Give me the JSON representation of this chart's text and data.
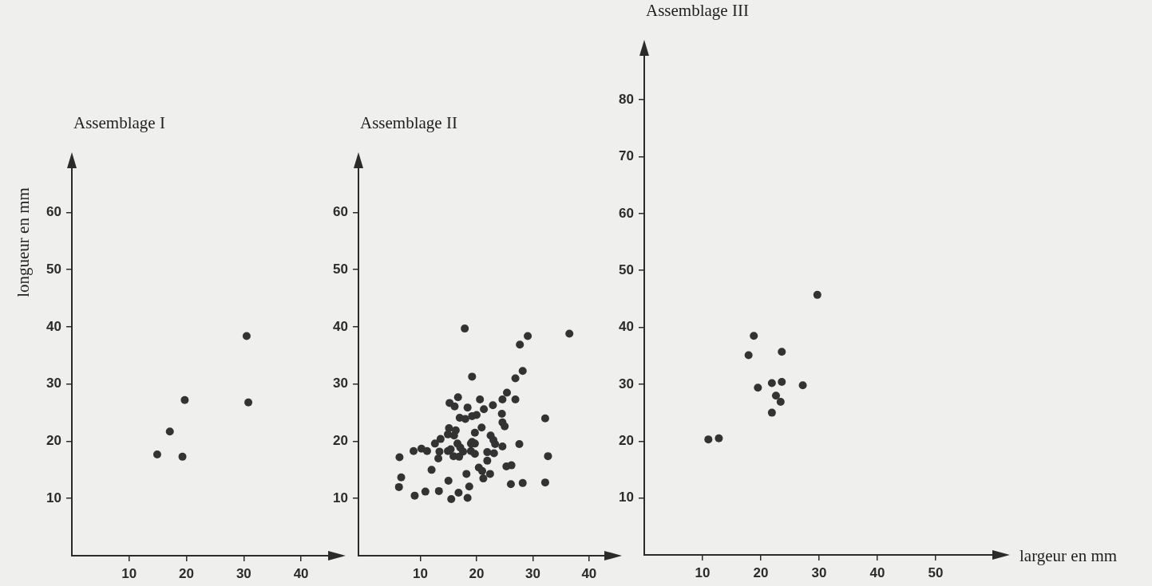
{
  "chart_data": [
    {
      "type": "scatter",
      "title": "Assemblage I",
      "ylabel": "longueur en mm",
      "marker": "circle",
      "xlim": [
        0,
        45
      ],
      "ylim": [
        0,
        68
      ],
      "xticks": [
        10,
        20,
        30,
        40
      ],
      "yticks": [
        10,
        20,
        30,
        40,
        50,
        60
      ],
      "series": [
        {
          "color": "#333333",
          "x": [
            30.5,
            19.7,
            30.8,
            17.1,
            14.9,
            19.3
          ],
          "values": [
            38.4,
            27.2,
            26.8,
            21.7,
            17.7,
            17.3
          ]
        }
      ]
    },
    {
      "type": "scatter",
      "title": "Assemblage II",
      "marker": "circle",
      "xlim": [
        -1,
        43
      ],
      "ylim": [
        0,
        68
      ],
      "xticks": [
        10,
        20,
        30,
        40
      ],
      "yticks": [
        10,
        20,
        30,
        40,
        50,
        60
      ],
      "series": [
        {
          "color": "#333333",
          "x": [
            17.9,
            29.1,
            36.5,
            27.7,
            28.2,
            19.2,
            26.9,
            25.4,
            16.7,
            20.6,
            24.6,
            26.9,
            15.2,
            16.1,
            18.4,
            21.3,
            22.9,
            17.0,
            18.0,
            19.2,
            20.0,
            24.5,
            32.2,
            24.6,
            25.0,
            15.1,
            16.3,
            20.9,
            14.9,
            16.0,
            19.7,
            22.5,
            13.6,
            23.0,
            12.6,
            16.6,
            19.2,
            17.1,
            19.0,
            19.7,
            23.3,
            27.6,
            24.6,
            8.8,
            10.2,
            11.2,
            13.4,
            14.9,
            15.4,
            17.6,
            19.0,
            19.7,
            21.9,
            23.1,
            6.3,
            13.2,
            15.9,
            16.9,
            21.9,
            32.7,
            25.3,
            26.2,
            20.4,
            21.0,
            12.0,
            6.6,
            18.2,
            22.4,
            21.2,
            15.0,
            6.2,
            26.1,
            28.2,
            32.2,
            18.7,
            9.0,
            10.9,
            13.3,
            16.8,
            15.5,
            18.4
          ],
          "values": [
            39.7,
            38.4,
            38.8,
            36.9,
            32.3,
            31.3,
            31.0,
            28.5,
            27.7,
            27.3,
            27.3,
            27.3,
            26.7,
            26.1,
            25.9,
            25.6,
            26.3,
            24.1,
            23.9,
            24.4,
            24.6,
            24.8,
            24.0,
            23.3,
            22.6,
            22.3,
            21.9,
            22.4,
            21.2,
            21.0,
            21.5,
            21.0,
            20.4,
            20.2,
            19.6,
            19.6,
            19.9,
            18.9,
            19.6,
            19.6,
            19.5,
            19.5,
            19.1,
            18.3,
            18.7,
            18.3,
            18.2,
            18.3,
            18.6,
            18.2,
            18.3,
            17.8,
            18.1,
            17.9,
            17.2,
            17.0,
            17.4,
            17.3,
            16.6,
            17.4,
            15.6,
            15.8,
            15.4,
            14.8,
            15.0,
            13.7,
            14.3,
            14.3,
            13.5,
            13.1,
            12.0,
            12.5,
            12.7,
            12.8,
            12.1,
            10.5,
            11.2,
            11.3,
            11.0,
            9.9,
            10.1
          ]
        }
      ]
    },
    {
      "type": "scatter",
      "title": "Assemblage III",
      "xlabel": "largeur en mm",
      "marker": "circle",
      "xlim": [
        0,
        60
      ],
      "ylim": [
        0,
        88
      ],
      "xticks": [
        10,
        20,
        30,
        40,
        50
      ],
      "yticks": [
        10,
        20,
        30,
        40,
        50,
        60,
        70,
        80
      ],
      "series": [
        {
          "color": "#333333",
          "x": [
            29.7,
            18.8,
            17.9,
            23.6,
            19.5,
            21.9,
            23.6,
            27.2,
            22.6,
            23.4,
            21.9,
            11.0,
            12.8
          ],
          "values": [
            45.7,
            38.5,
            35.1,
            35.7,
            29.4,
            30.2,
            30.4,
            29.8,
            28.0,
            26.9,
            25.0,
            20.3,
            20.5
          ]
        }
      ]
    }
  ]
}
